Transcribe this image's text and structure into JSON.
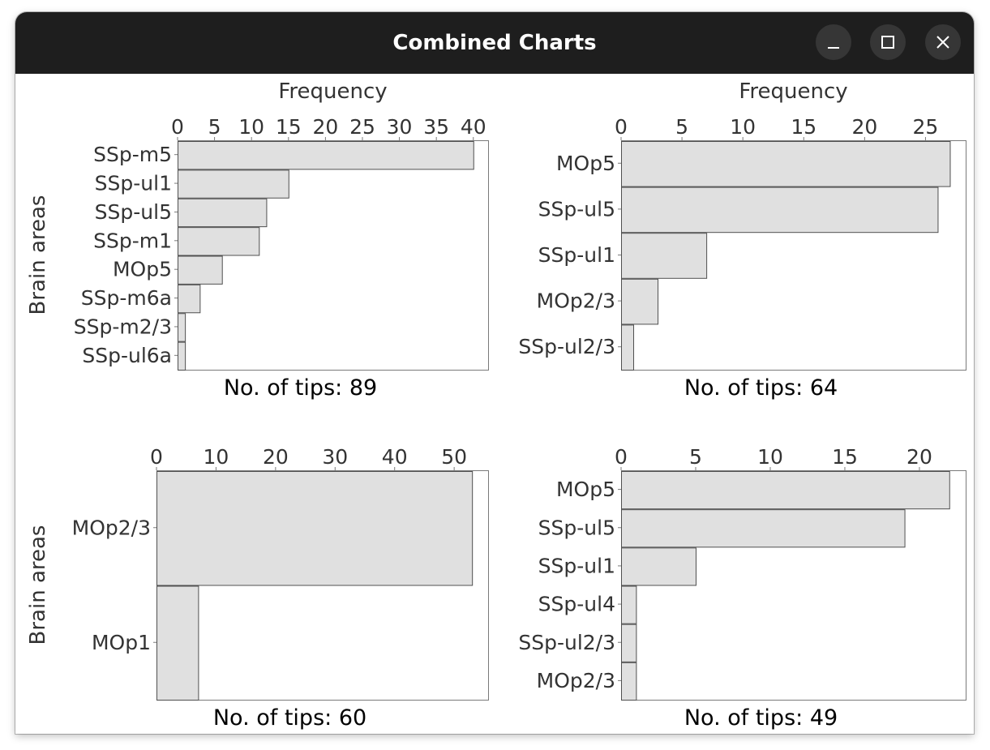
{
  "window": {
    "title": "Combined Charts"
  },
  "chart_data": [
    {
      "type": "bar",
      "orientation": "horizontal",
      "title": "",
      "xlabel": "Frequency",
      "ylabel": "Brain areas",
      "xaxis_position": "top",
      "xlim": [
        0,
        42
      ],
      "xticks": [
        0,
        5,
        10,
        15,
        20,
        25,
        30,
        35,
        40
      ],
      "categories": [
        "SSp-m5",
        "SSp-ul1",
        "SSp-ul5",
        "SSp-m1",
        "MOp5",
        "SSp-m6a",
        "SSp-m2/3",
        "SSp-ul6a"
      ],
      "values": [
        40,
        15,
        12,
        11,
        6,
        3,
        1,
        1
      ],
      "footer": "No. of tips: 89",
      "bar_color": "#e0e0e0",
      "grid": false
    },
    {
      "type": "bar",
      "orientation": "horizontal",
      "title": "",
      "xlabel": "Frequency",
      "ylabel": "",
      "xaxis_position": "top",
      "xlim": [
        0,
        28.3
      ],
      "xticks": [
        0,
        5,
        10,
        15,
        20,
        25
      ],
      "categories": [
        "MOp5",
        "SSp-ul5",
        "SSp-ul1",
        "MOp2/3",
        "SSp-ul2/3"
      ],
      "values": [
        27,
        26,
        7,
        3,
        1
      ],
      "footer": "No. of tips: 64",
      "bar_color": "#e0e0e0",
      "grid": false
    },
    {
      "type": "bar",
      "orientation": "horizontal",
      "title": "",
      "xlabel": "",
      "ylabel": "Brain areas",
      "xaxis_position": "top",
      "xlim": [
        0,
        55.7
      ],
      "xticks": [
        0,
        10,
        20,
        30,
        40,
        50
      ],
      "categories": [
        "MOp2/3",
        "MOp1"
      ],
      "values": [
        53,
        7
      ],
      "footer": "No. of tips: 60",
      "bar_color": "#e0e0e0",
      "grid": false
    },
    {
      "type": "bar",
      "orientation": "horizontal",
      "title": "",
      "xlabel": "",
      "ylabel": "",
      "xaxis_position": "top",
      "xlim": [
        0,
        23.1
      ],
      "xticks": [
        0,
        5,
        10,
        15,
        20
      ],
      "categories": [
        "MOp5",
        "SSp-ul5",
        "SSp-ul1",
        "SSp-ul4",
        "SSp-ul2/3",
        "MOp2/3"
      ],
      "values": [
        22,
        19,
        5,
        1,
        1,
        1
      ],
      "footer": "No. of tips: 49",
      "bar_color": "#e0e0e0",
      "grid": false
    }
  ]
}
